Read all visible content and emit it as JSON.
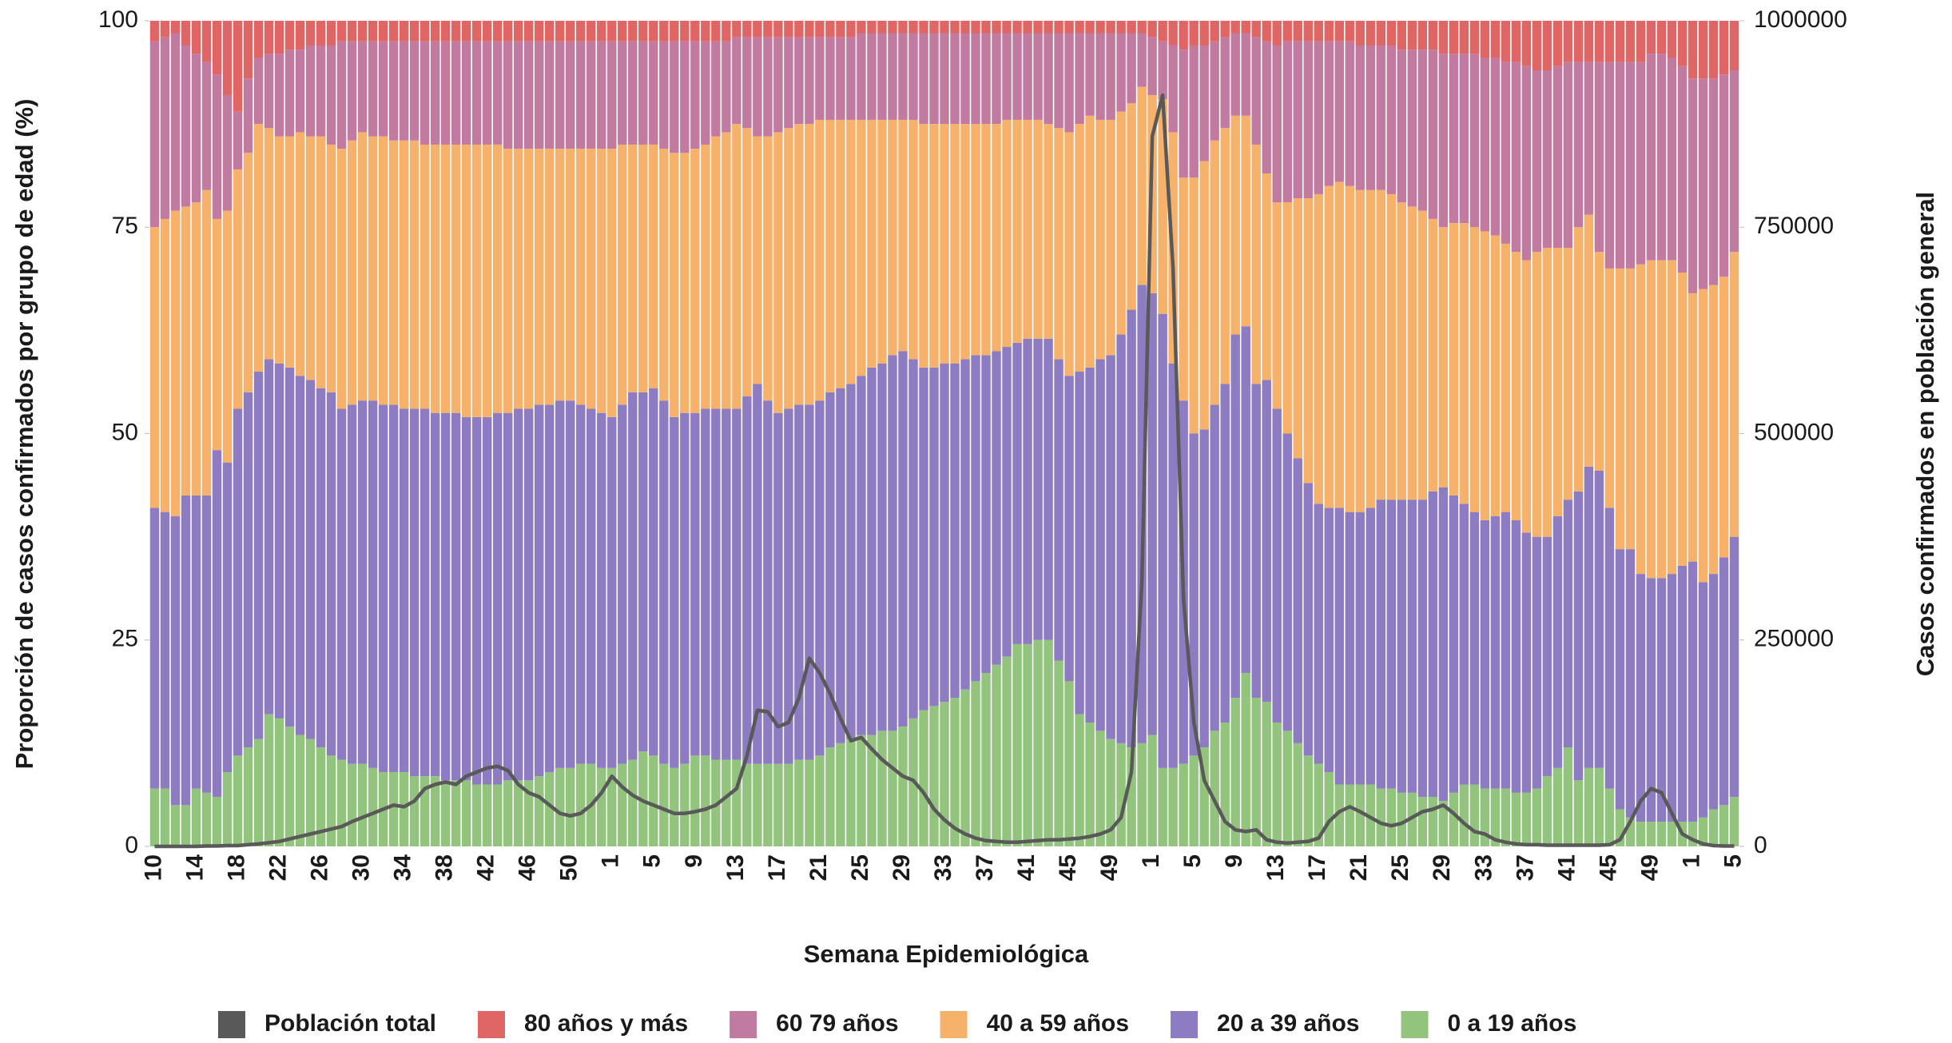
{
  "chart_data": {
    "type": "bar",
    "stacked": true,
    "x_label": "Semana Epidemiológica",
    "y_label": "Proporción de casos confirmados por grupo de edad (%)",
    "y2_label": "Casos confirmados en población general",
    "ylim": [
      0,
      100
    ],
    "yticks": [
      0,
      25,
      50,
      75,
      100
    ],
    "y2lim": [
      0,
      1000000
    ],
    "y2ticks": [
      0,
      250000,
      500000,
      750000,
      1000000
    ],
    "categories": [
      "10",
      null,
      null,
      null,
      "14",
      null,
      null,
      null,
      "18",
      null,
      null,
      null,
      "22",
      null,
      null,
      null,
      "26",
      null,
      null,
      null,
      "30",
      null,
      null,
      null,
      "34",
      null,
      null,
      null,
      "38",
      null,
      null,
      null,
      "42",
      null,
      null,
      null,
      "46",
      null,
      null,
      null,
      "50",
      null,
      null,
      null,
      "1",
      null,
      null,
      null,
      "5",
      null,
      null,
      null,
      "9",
      null,
      null,
      null,
      "13",
      null,
      null,
      null,
      "17",
      null,
      null,
      null,
      "21",
      null,
      null,
      null,
      "25",
      null,
      null,
      null,
      "29",
      null,
      null,
      null,
      "33",
      null,
      null,
      null,
      "37",
      null,
      null,
      null,
      "41",
      null,
      null,
      null,
      "45",
      null,
      null,
      null,
      "49",
      null,
      null,
      null,
      "1",
      null,
      null,
      null,
      "5",
      null,
      null,
      null,
      "9",
      null,
      null,
      null,
      "13",
      null,
      null,
      null,
      "17",
      null,
      null,
      null,
      "21",
      null,
      null,
      null,
      "25",
      null,
      null,
      null,
      "29",
      null,
      null,
      null,
      "33",
      null,
      null,
      null,
      "37",
      null,
      null,
      null,
      "41",
      null,
      null,
      null,
      "45",
      null,
      null,
      null,
      "49",
      null,
      null,
      null,
      "1",
      null,
      null,
      null,
      "5"
    ],
    "series": [
      {
        "name": "Población total",
        "type": "line",
        "axis": "y2",
        "color": "#595959",
        "values": [
          0,
          0,
          0,
          0,
          0,
          500,
          500,
          1000,
          1000,
          2000,
          3000,
          4500,
          6000,
          9000,
          12000,
          15000,
          18000,
          21000,
          24000,
          30000,
          35000,
          40000,
          45000,
          50000,
          48000,
          55000,
          70000,
          75000,
          78000,
          75000,
          85000,
          90000,
          95000,
          97000,
          92000,
          75000,
          65000,
          60000,
          50000,
          40000,
          37000,
          40000,
          50000,
          65000,
          85000,
          72000,
          62000,
          55000,
          50000,
          45000,
          40000,
          40000,
          42000,
          45000,
          50000,
          60000,
          70000,
          110000,
          165000,
          163000,
          145000,
          150000,
          180000,
          228000,
          210000,
          185000,
          155000,
          128000,
          132000,
          118000,
          105000,
          95000,
          85000,
          80000,
          65000,
          45000,
          32000,
          22000,
          15000,
          10000,
          7000,
          6000,
          5000,
          5000,
          6000,
          7000,
          8000,
          8000,
          9000,
          10000,
          12000,
          15000,
          20000,
          35000,
          90000,
          320000,
          860000,
          910000,
          700000,
          300000,
          150000,
          80000,
          55000,
          30000,
          20000,
          18000,
          20000,
          8000,
          5000,
          4000,
          5000,
          6000,
          10000,
          30000,
          42000,
          48000,
          42000,
          35000,
          28000,
          25000,
          28000,
          35000,
          42000,
          45000,
          50000,
          40000,
          28000,
          18000,
          15000,
          8000,
          5000,
          3000,
          2000,
          2000,
          1500,
          1500,
          1500,
          1500,
          1500,
          1500,
          2000,
          8000,
          30000,
          55000,
          70000,
          65000,
          40000,
          15000,
          8000,
          3000,
          1000,
          500,
          500
        ]
      },
      {
        "name": "80 años y más",
        "color": "#e06666",
        "values": [
          2.5,
          2,
          1.5,
          3,
          4,
          5,
          6.5,
          9,
          11,
          7,
          4.5,
          4,
          4,
          3.5,
          3.5,
          3,
          3,
          3,
          2.5,
          2.5,
          2.5,
          2.5,
          2.5,
          2.5,
          2.5,
          2.5,
          2.5,
          2.5,
          2.5,
          2.5,
          2.5,
          2.5,
          2.5,
          2.5,
          2.5,
          2.5,
          2.5,
          2.5,
          2.5,
          2.5,
          2.5,
          2.5,
          2.5,
          2.5,
          2.5,
          2.5,
          2.5,
          2.5,
          2.5,
          2.5,
          2.5,
          2.5,
          2.5,
          2.5,
          2.5,
          2.5,
          2,
          2,
          2,
          2,
          2,
          2,
          2,
          2,
          2,
          2,
          2,
          2,
          1.5,
          1.5,
          1.5,
          1.5,
          1.5,
          1.5,
          1.5,
          1.5,
          1.5,
          1.5,
          1.5,
          1.5,
          1.5,
          1.5,
          1.5,
          1.5,
          1.5,
          1.5,
          1.5,
          1.5,
          1.5,
          1.5,
          1.5,
          1.5,
          1.5,
          1.5,
          1.5,
          1.5,
          2,
          2.5,
          3,
          3.5,
          3,
          3,
          2.5,
          2,
          1.5,
          1.5,
          2,
          2.5,
          3,
          2.5,
          2.5,
          2.5,
          2.5,
          2.5,
          2.5,
          2.5,
          3,
          3,
          3,
          3,
          3.5,
          3.5,
          3.5,
          3.5,
          4,
          4,
          4,
          4,
          4.5,
          4.5,
          5,
          5,
          5.5,
          6,
          6,
          5.5,
          5,
          5,
          5,
          5,
          5,
          5,
          5,
          5,
          4,
          4,
          4.5,
          5.5,
          7,
          7,
          7,
          6.5,
          6
        ]
      },
      {
        "name": "60 79 años",
        "color": "#c27ba0",
        "values": [
          22.5,
          22,
          21.5,
          19.5,
          18,
          15.5,
          17.5,
          14,
          7,
          9,
          8,
          9,
          10,
          10.5,
          10,
          11,
          11,
          12,
          13,
          12,
          11,
          11.5,
          11.5,
          12,
          12,
          12,
          12.5,
          12.5,
          12.5,
          12.5,
          12.5,
          12.5,
          12.5,
          12.5,
          13,
          13,
          13,
          13,
          13,
          13,
          13,
          13,
          13,
          13,
          13,
          12.5,
          12.5,
          12.5,
          12.5,
          13,
          13.5,
          13.5,
          13,
          12.5,
          11.5,
          11,
          10.5,
          11,
          12,
          12,
          11.5,
          11,
          10.5,
          10.5,
          10,
          10,
          10,
          10,
          10.5,
          10.5,
          10.5,
          10.5,
          10.5,
          10.5,
          11,
          11,
          11,
          11,
          11,
          11,
          11,
          11,
          10.5,
          10.5,
          10.5,
          10.5,
          11,
          11.5,
          12,
          11,
          10,
          10.5,
          10.5,
          9.5,
          8.5,
          6.5,
          7,
          7,
          10.5,
          15.5,
          16,
          14,
          12,
          11,
          10,
          10,
          13,
          16,
          19,
          19.5,
          19,
          19,
          18.5,
          17.5,
          17,
          17.5,
          17.5,
          17.5,
          17.5,
          18,
          18.5,
          19,
          19.5,
          20.5,
          21,
          20.5,
          20.5,
          21,
          21,
          21.5,
          22,
          23,
          23.5,
          22,
          21.5,
          22,
          22.5,
          20,
          18.5,
          23,
          25,
          25,
          25,
          24.5,
          25,
          25,
          24.5,
          25,
          26,
          25.5,
          25,
          24.5,
          22
        ]
      },
      {
        "name": "40 a 59 años",
        "color": "#f6b26b",
        "values": [
          34,
          35.5,
          37,
          35,
          35.5,
          37,
          28,
          30.5,
          29,
          29,
          30,
          28,
          27.5,
          28,
          29.5,
          29.5,
          30.5,
          30,
          31.5,
          32,
          32.5,
          32,
          32.5,
          32,
          32.5,
          32.5,
          32,
          32.5,
          32.5,
          32.5,
          33,
          33,
          33,
          32.5,
          32,
          31.5,
          31.5,
          31,
          31,
          30.5,
          30.5,
          31,
          31.5,
          32,
          32.5,
          31.5,
          30,
          30,
          29.5,
          30.5,
          32,
          31.5,
          32,
          32,
          33,
          33.5,
          34.5,
          32.5,
          30,
          32,
          34,
          34,
          34,
          34,
          34,
          33,
          32.5,
          32,
          31,
          30,
          29.5,
          28.5,
          28,
          29,
          29.5,
          29.5,
          29,
          29,
          28.5,
          28,
          28,
          27.5,
          27.5,
          27,
          26.5,
          26.5,
          26,
          28,
          29.5,
          30,
          30.5,
          29,
          28.5,
          27,
          25,
          24,
          24,
          26,
          28,
          27,
          31,
          32.5,
          32,
          31,
          26.5,
          25.5,
          29,
          25,
          25,
          28,
          31.5,
          34.5,
          37.5,
          39,
          39.5,
          39.5,
          39,
          38.5,
          37.5,
          37,
          36,
          35.5,
          35,
          33,
          31.5,
          33,
          34,
          34.5,
          35,
          34,
          32.5,
          32.5,
          33,
          34.5,
          35,
          32.5,
          30.5,
          32,
          30.5,
          26.5,
          29,
          34,
          34,
          37.5,
          38.5,
          38.5,
          38,
          35.5,
          32.5,
          35.5,
          35,
          34,
          34.5
        ]
      },
      {
        "name": "20 a 39 años",
        "color": "#8e7cc3",
        "values": [
          34,
          33.5,
          35,
          37.5,
          35.5,
          36,
          42,
          37.5,
          42,
          43,
          44.5,
          43,
          43,
          43.5,
          43.5,
          43.5,
          43.5,
          44,
          42.5,
          43.5,
          44,
          44.5,
          44.5,
          44.5,
          44,
          44.5,
          44.5,
          44,
          44.5,
          44.5,
          44,
          44.5,
          44.5,
          45,
          44.5,
          45,
          45,
          45,
          44.5,
          44.5,
          44.5,
          43.5,
          43,
          43,
          42.5,
          43.5,
          44.5,
          43.5,
          44.5,
          44,
          42.5,
          42.5,
          41.5,
          42,
          42.5,
          42.5,
          42.5,
          44.5,
          46,
          44,
          42.5,
          43,
          43,
          43,
          43,
          43,
          43,
          43,
          43.5,
          44.5,
          44.5,
          45.5,
          45.5,
          43.5,
          41.5,
          41,
          41,
          40.5,
          40,
          39.5,
          38.5,
          38,
          37.5,
          36.5,
          37,
          36.5,
          36.5,
          36.5,
          37,
          41.5,
          43,
          45,
          46.5,
          49.5,
          53,
          55.5,
          53.5,
          55,
          49,
          44,
          39,
          38.5,
          39.5,
          41,
          44,
          42,
          38,
          39,
          38,
          36,
          34.5,
          33,
          31.5,
          32,
          33.5,
          33,
          33,
          33.5,
          35,
          35,
          35.5,
          35.5,
          36,
          37,
          38,
          36,
          34,
          33,
          32.5,
          33,
          33.5,
          33,
          31.5,
          30.5,
          29,
          30.5,
          30,
          35,
          36.5,
          36,
          34,
          31.5,
          32.5,
          30,
          29.5,
          29.5,
          30,
          31,
          31.5,
          28.5,
          28.5,
          30,
          31.5
        ]
      },
      {
        "name": "0 a 19 años",
        "color": "#93c47d",
        "values": [
          7,
          7,
          5,
          5,
          7,
          6.5,
          6,
          9,
          11,
          12,
          13,
          16,
          15.5,
          14.5,
          13.5,
          13,
          12,
          11,
          10.5,
          10,
          10,
          9.5,
          9,
          9,
          9,
          8.5,
          8.5,
          8.5,
          8,
          8,
          8,
          7.5,
          7.5,
          7.5,
          8,
          8,
          8,
          8.5,
          9,
          9.5,
          9.5,
          10,
          10,
          9.5,
          9.5,
          10,
          10.5,
          11.5,
          11,
          10,
          9.5,
          10,
          11,
          11,
          10.5,
          10.5,
          10.5,
          10,
          10,
          10,
          10,
          10,
          10.5,
          10.5,
          11,
          12,
          12.5,
          13,
          13.5,
          13.5,
          14,
          14,
          14.5,
          15.5,
          16.5,
          17,
          17.5,
          18,
          19,
          20,
          21,
          22,
          23,
          24.5,
          24.5,
          25,
          25,
          22.5,
          20,
          16,
          15,
          14,
          13,
          12.5,
          12,
          12.5,
          13.5,
          9.5,
          9.5,
          10,
          11,
          12,
          14,
          15,
          18,
          21,
          18,
          17.5,
          15,
          14,
          12.5,
          11,
          10,
          9,
          7.5,
          7.5,
          7.5,
          7.5,
          7,
          7,
          6.5,
          6.5,
          6,
          6,
          5.5,
          6.5,
          7.5,
          7.5,
          7,
          7,
          7,
          6.5,
          6.5,
          7,
          8.5,
          9.5,
          12,
          8,
          9.5,
          9.5,
          7,
          4.5,
          3.5,
          3,
          3,
          3,
          3,
          3,
          3,
          3.5,
          4.5,
          5,
          6
        ]
      }
    ]
  }
}
